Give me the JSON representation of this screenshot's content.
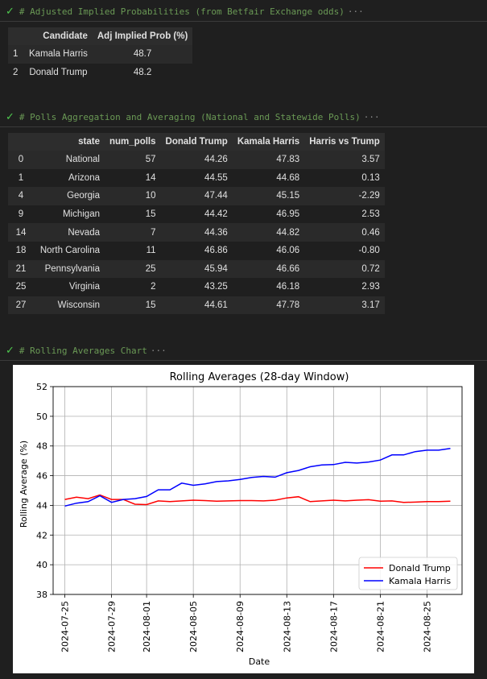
{
  "cells": [
    {
      "comment": "# Adjusted Implied Probabilities (from Betfair Exchange odds)",
      "ellipsis": "···"
    },
    {
      "comment": "# Polls Aggregation and Averaging (National and Statewide Polls)",
      "ellipsis": "···"
    },
    {
      "comment": "# Rolling Averages Chart",
      "ellipsis": "···"
    }
  ],
  "prob_table": {
    "columns": [
      "",
      "Candidate",
      "Adj Implied Prob (%)"
    ],
    "rows": [
      [
        "1",
        "Kamala Harris",
        "48.7"
      ],
      [
        "2",
        "Donald Trump",
        "48.2"
      ]
    ]
  },
  "polls_table": {
    "columns": [
      "",
      "state",
      "num_polls",
      "Donald Trump",
      "Kamala Harris",
      "Harris vs Trump"
    ],
    "rows": [
      [
        "0",
        "National",
        "57",
        "44.26",
        "47.83",
        "3.57"
      ],
      [
        "1",
        "Arizona",
        "14",
        "44.55",
        "44.68",
        "0.13"
      ],
      [
        "4",
        "Georgia",
        "10",
        "47.44",
        "45.15",
        "-2.29"
      ],
      [
        "9",
        "Michigan",
        "15",
        "44.42",
        "46.95",
        "2.53"
      ],
      [
        "14",
        "Nevada",
        "7",
        "44.36",
        "44.82",
        "0.46"
      ],
      [
        "18",
        "North Carolina",
        "11",
        "46.86",
        "46.06",
        "-0.80"
      ],
      [
        "21",
        "Pennsylvania",
        "25",
        "45.94",
        "46.66",
        "0.72"
      ],
      [
        "25",
        "Virginia",
        "2",
        "43.25",
        "46.18",
        "2.93"
      ],
      [
        "27",
        "Wisconsin",
        "15",
        "44.61",
        "47.78",
        "3.17"
      ]
    ]
  },
  "chart_data": {
    "type": "line",
    "title": "Rolling Averages (28-day Window)",
    "xlabel": "Date",
    "ylabel": "Rolling Average (%)",
    "ylim": [
      38,
      52
    ],
    "yticks": [
      38,
      40,
      42,
      44,
      46,
      48,
      50,
      52
    ],
    "xlim": [
      "2024-07-24",
      "2024-08-28"
    ],
    "xticks": [
      "2024-07-25",
      "2024-07-29",
      "2024-08-01",
      "2024-08-05",
      "2024-08-09",
      "2024-08-13",
      "2024-08-17",
      "2024-08-21",
      "2024-08-25"
    ],
    "grid": true,
    "legend": "lower-right",
    "x": [
      "2024-07-25",
      "2024-07-26",
      "2024-07-27",
      "2024-07-28",
      "2024-07-29",
      "2024-07-30",
      "2024-07-31",
      "2024-08-01",
      "2024-08-02",
      "2024-08-03",
      "2024-08-04",
      "2024-08-05",
      "2024-08-06",
      "2024-08-07",
      "2024-08-08",
      "2024-08-09",
      "2024-08-10",
      "2024-08-11",
      "2024-08-12",
      "2024-08-13",
      "2024-08-14",
      "2024-08-15",
      "2024-08-16",
      "2024-08-17",
      "2024-08-18",
      "2024-08-19",
      "2024-08-20",
      "2024-08-21",
      "2024-08-22",
      "2024-08-23",
      "2024-08-24",
      "2024-08-25",
      "2024-08-26",
      "2024-08-27"
    ],
    "series": [
      {
        "name": "Donald Trump",
        "color": "#ff0000",
        "values": [
          44.4,
          44.55,
          44.45,
          44.7,
          44.4,
          44.4,
          44.08,
          44.05,
          44.3,
          44.25,
          44.3,
          44.35,
          44.32,
          44.28,
          44.3,
          44.32,
          44.32,
          44.3,
          44.35,
          44.5,
          44.58,
          44.25,
          44.3,
          44.35,
          44.3,
          44.35,
          44.38,
          44.28,
          44.3,
          44.2,
          44.22,
          44.25,
          44.25,
          44.28
        ]
      },
      {
        "name": "Kamala Harris",
        "color": "#0000ff",
        "values": [
          43.95,
          44.15,
          44.25,
          44.65,
          44.2,
          44.4,
          44.45,
          44.6,
          45.05,
          45.05,
          45.5,
          45.35,
          45.45,
          45.6,
          45.65,
          45.75,
          45.88,
          45.95,
          45.9,
          46.2,
          46.35,
          46.6,
          46.72,
          46.75,
          46.9,
          46.85,
          46.92,
          47.05,
          47.4,
          47.4,
          47.62,
          47.72,
          47.72,
          47.83
        ]
      }
    ]
  }
}
